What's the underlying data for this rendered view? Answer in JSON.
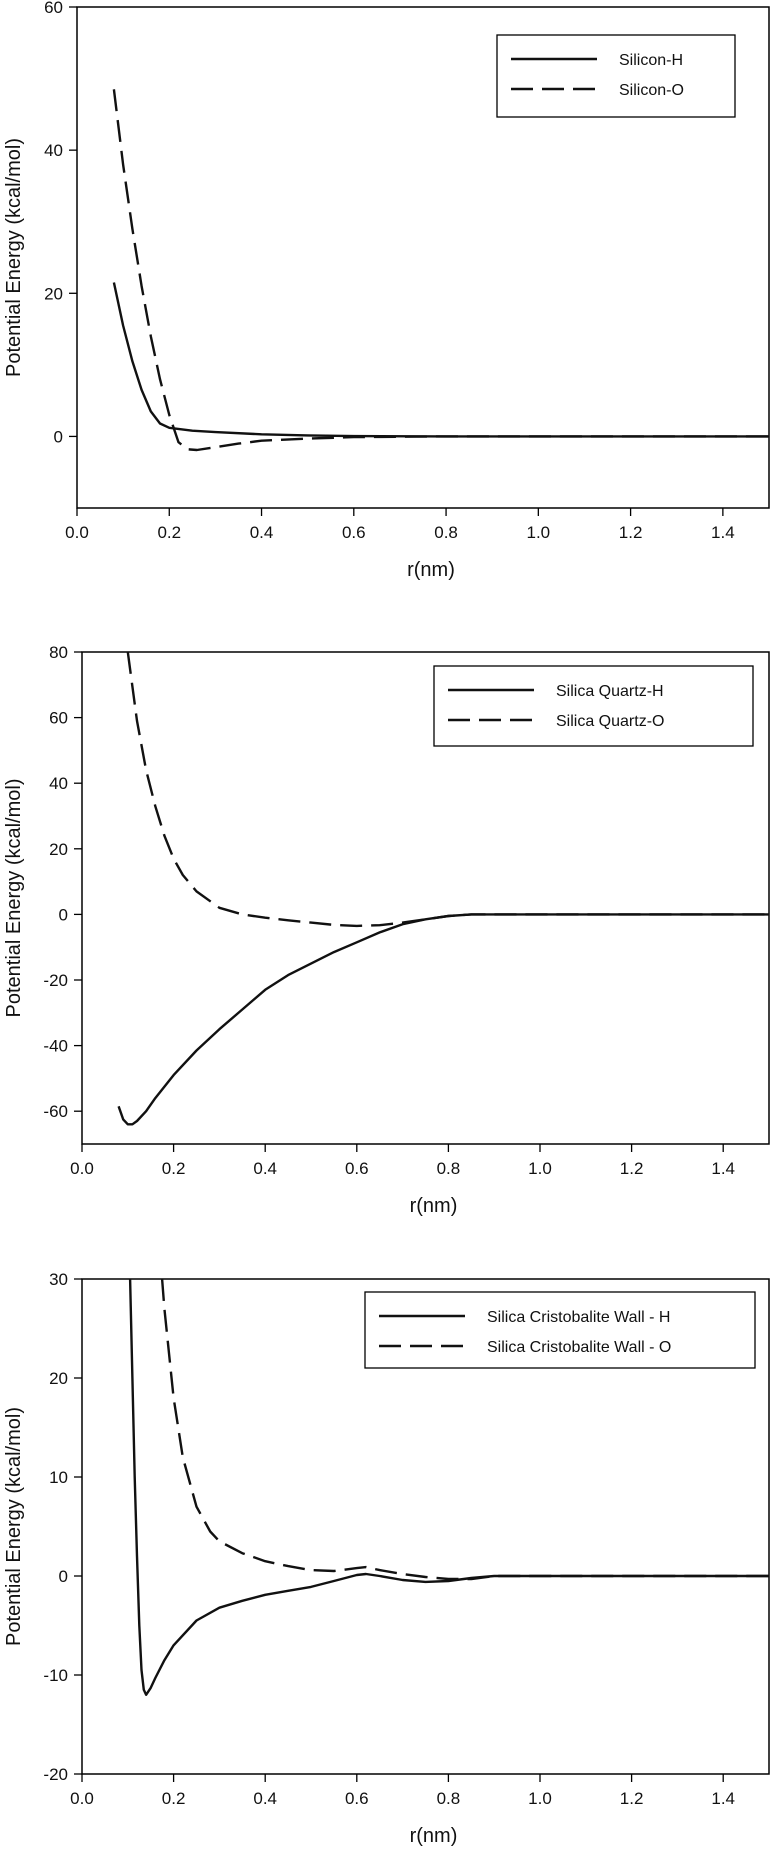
{
  "chart_data": [
    {
      "type": "line",
      "xlabel": "r(nm)",
      "ylabel": "Potential Energy (kcal/mol)",
      "xlim": [
        0.0,
        1.5
      ],
      "ylim": [
        -10,
        60
      ],
      "xticks": [
        "0.0",
        "0.2",
        "0.4",
        "0.6",
        "0.8",
        "1.0",
        "1.2",
        "1.4"
      ],
      "yticks": [
        "0",
        "20",
        "40",
        "60"
      ],
      "grid": false,
      "legend_position": "top-right",
      "series": [
        {
          "name": "Silicon-H",
          "style": "solid",
          "x": [
            0.08,
            0.1,
            0.12,
            0.14,
            0.16,
            0.18,
            0.2,
            0.25,
            0.3,
            0.4,
            0.5,
            0.6,
            0.8,
            1.0,
            1.5
          ],
          "y": [
            21.5,
            15.5,
            10.5,
            6.5,
            3.5,
            1.8,
            1.2,
            0.8,
            0.6,
            0.3,
            0.15,
            0.05,
            0,
            0,
            0
          ]
        },
        {
          "name": "Silicon-O",
          "style": "dashed",
          "x": [
            0.08,
            0.1,
            0.12,
            0.14,
            0.16,
            0.18,
            0.2,
            0.22,
            0.24,
            0.26,
            0.3,
            0.35,
            0.4,
            0.5,
            0.6,
            0.8,
            1.5
          ],
          "y": [
            48.5,
            38,
            29,
            21,
            14,
            8,
            3,
            -0.8,
            -1.8,
            -1.9,
            -1.5,
            -1.0,
            -0.6,
            -0.3,
            -0.1,
            0,
            0
          ]
        }
      ]
    },
    {
      "type": "line",
      "xlabel": "r(nm)",
      "ylabel": "Potential Energy (kcal/mol)",
      "xlim": [
        0.0,
        1.5
      ],
      "ylim": [
        -70,
        80
      ],
      "xticks": [
        "0.0",
        "0.2",
        "0.4",
        "0.6",
        "0.8",
        "1.0",
        "1.2",
        "1.4"
      ],
      "yticks": [
        "-60",
        "-40",
        "-20",
        "0",
        "20",
        "40",
        "60",
        "80"
      ],
      "grid": false,
      "legend_position": "top-right",
      "series": [
        {
          "name": "Silica Quartz-H",
          "style": "solid",
          "x": [
            0.08,
            0.09,
            0.1,
            0.11,
            0.12,
            0.14,
            0.16,
            0.2,
            0.25,
            0.3,
            0.35,
            0.4,
            0.45,
            0.5,
            0.55,
            0.6,
            0.65,
            0.7,
            0.75,
            0.8,
            0.85,
            0.9,
            1.0,
            1.5
          ],
          "y": [
            -58.5,
            -62.5,
            -64,
            -64,
            -63,
            -60,
            -56,
            -49,
            -41.5,
            -35,
            -29,
            -23,
            -18.5,
            -15,
            -11.5,
            -8.5,
            -5.5,
            -3,
            -1.5,
            -0.5,
            0,
            0,
            0,
            0
          ]
        },
        {
          "name": "Silica Quartz-O",
          "style": "dashed",
          "x": [
            0.1,
            0.12,
            0.14,
            0.16,
            0.18,
            0.2,
            0.22,
            0.25,
            0.3,
            0.35,
            0.4,
            0.45,
            0.5,
            0.55,
            0.6,
            0.65,
            0.7,
            0.75,
            0.8,
            0.85,
            0.9,
            1.0,
            1.5
          ],
          "y": [
            80,
            59,
            44,
            33,
            24,
            17,
            12,
            7,
            2,
            0,
            -1,
            -1.8,
            -2.5,
            -3.2,
            -3.5,
            -3.3,
            -2.5,
            -1.5,
            -0.5,
            0,
            0,
            0,
            0
          ]
        }
      ]
    },
    {
      "type": "line",
      "xlabel": "r(nm)",
      "ylabel": "Potential Energy (kcal/mol)",
      "xlim": [
        0.0,
        1.5
      ],
      "ylim": [
        -20,
        30
      ],
      "xticks": [
        "0.0",
        "0.2",
        "0.4",
        "0.6",
        "0.8",
        "1.0",
        "1.2",
        "1.4"
      ],
      "yticks": [
        "-20",
        "-10",
        "0",
        "10",
        "20",
        "30"
      ],
      "grid": false,
      "legend_position": "top-right",
      "series": [
        {
          "name": "Silica Cristobalite Wall - H",
          "style": "solid",
          "x": [
            0.105,
            0.11,
            0.115,
            0.12,
            0.125,
            0.13,
            0.135,
            0.14,
            0.15,
            0.16,
            0.18,
            0.2,
            0.25,
            0.3,
            0.35,
            0.4,
            0.45,
            0.5,
            0.55,
            0.6,
            0.62,
            0.65,
            0.7,
            0.75,
            0.8,
            0.85,
            0.9,
            1.0,
            1.5
          ],
          "y": [
            30,
            20,
            10,
            2,
            -5,
            -9.5,
            -11.5,
            -12,
            -11.3,
            -10.3,
            -8.5,
            -7,
            -4.5,
            -3.2,
            -2.5,
            -1.9,
            -1.5,
            -1.1,
            -0.5,
            0.1,
            0.2,
            0,
            -0.4,
            -0.6,
            -0.5,
            -0.2,
            0,
            0,
            0
          ]
        },
        {
          "name": "Silica Cristobalite Wall - O",
          "style": "dashed",
          "x": [
            0.175,
            0.18,
            0.2,
            0.22,
            0.25,
            0.28,
            0.3,
            0.35,
            0.4,
            0.45,
            0.5,
            0.55,
            0.6,
            0.62,
            0.65,
            0.7,
            0.75,
            0.8,
            0.85,
            0.9,
            1.0,
            1.5
          ],
          "y": [
            30,
            27,
            18,
            12,
            7,
            4.5,
            3.5,
            2.3,
            1.5,
            1.0,
            0.6,
            0.5,
            0.8,
            0.9,
            0.6,
            0.2,
            -0.1,
            -0.3,
            -0.3,
            0,
            0,
            0
          ]
        }
      ]
    }
  ]
}
